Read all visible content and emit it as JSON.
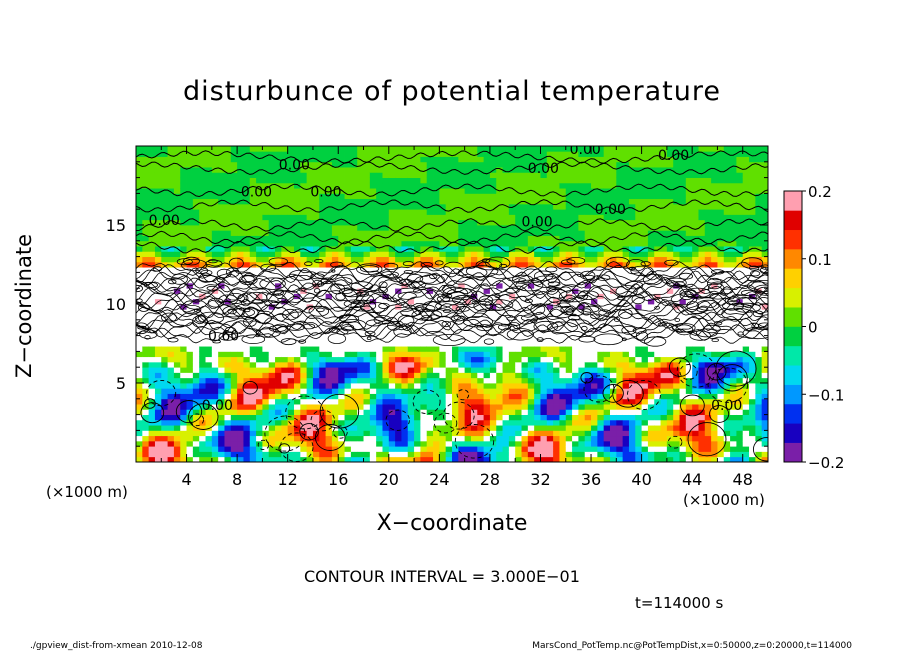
{
  "chart_data": {
    "type": "heatmap",
    "title": "disturbunce of potential temperature",
    "xlabel": "X−coordinate",
    "ylabel": "Z−coordinate",
    "x_unit": "(×1000 m)",
    "xlim": [
      0,
      50
    ],
    "ylim": [
      0,
      20
    ],
    "x_ticks": [
      4,
      8,
      12,
      16,
      20,
      24,
      28,
      32,
      36,
      40,
      44,
      48
    ],
    "y_ticks": [
      5,
      10,
      15
    ],
    "colorbar": {
      "range": [
        -0.2,
        0.2
      ],
      "ticks": [
        "0.2",
        "0.1",
        "0",
        "−0.1",
        "−0.2"
      ],
      "tick_values": [
        0.2,
        0.1,
        0,
        -0.1,
        -0.2
      ],
      "colors": [
        "#7a1fa8",
        "#1800c0",
        "#0030f0",
        "#0098ff",
        "#00d8f0",
        "#00e8a8",
        "#00d040",
        "#60e000",
        "#d8f000",
        "#ffd000",
        "#ff8800",
        "#ff3000",
        "#e00000",
        "#ff9fb0"
      ]
    },
    "contour_labels": [
      {
        "text": "0.00",
        "x": 34.3,
        "z": 19.5
      },
      {
        "text": "0.00",
        "x": 41.3,
        "z": 19.1
      },
      {
        "text": "0.00",
        "x": 11.3,
        "z": 18.5
      },
      {
        "text": "0.00",
        "x": 31.0,
        "z": 18.3
      },
      {
        "text": "0.00",
        "x": 8.3,
        "z": 16.8
      },
      {
        "text": "0.00",
        "x": 13.8,
        "z": 16.8
      },
      {
        "text": "0.00",
        "x": 36.3,
        "z": 15.7
      },
      {
        "text": "0.00",
        "x": 1.0,
        "z": 15.0
      },
      {
        "text": "0.00",
        "x": 30.5,
        "z": 14.9
      },
      {
        "text": "0.60",
        "x": 5.7,
        "z": 7.7
      },
      {
        "text": "0.00",
        "x": 5.2,
        "z": 3.3
      },
      {
        "text": "0.00",
        "x": 45.5,
        "z": 3.3
      }
    ],
    "contour_interval": "CONTOUR INTERVAL = 3.000E−01",
    "time": "t=114000 s"
  },
  "footer": {
    "left": "./gpview_dist-from-xmean  2010-12-08",
    "right": "MarsCond_PotTemp.nc@PotTempDist,x=0:50000,z=0:20000,t=114000"
  }
}
